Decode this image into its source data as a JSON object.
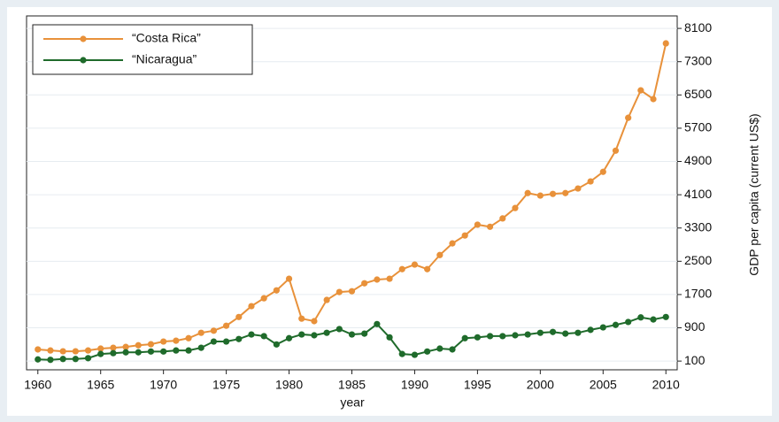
{
  "chart_data": {
    "type": "line",
    "x": [
      1960,
      1961,
      1962,
      1963,
      1964,
      1965,
      1966,
      1967,
      1968,
      1969,
      1970,
      1971,
      1972,
      1973,
      1974,
      1975,
      1976,
      1977,
      1978,
      1979,
      1980,
      1981,
      1982,
      1983,
      1984,
      1985,
      1986,
      1987,
      1988,
      1989,
      1990,
      1991,
      1992,
      1993,
      1994,
      1995,
      1996,
      1997,
      1998,
      1999,
      2000,
      2001,
      2002,
      2003,
      2004,
      2005,
      2006,
      2007,
      2008,
      2009,
      2010
    ],
    "series": [
      {
        "name": "“Costa Rica”",
        "color": "#e8913a",
        "values": [
          380,
          355,
          335,
          335,
          355,
          400,
          420,
          440,
          480,
          505,
          570,
          590,
          650,
          780,
          830,
          950,
          1160,
          1420,
          1610,
          1800,
          2080,
          1120,
          1060,
          1570,
          1760,
          1780,
          1970,
          2060,
          2080,
          2310,
          2420,
          2310,
          2650,
          2930,
          3120,
          3380,
          3330,
          3530,
          3780,
          4140,
          4080,
          4120,
          4140,
          4250,
          4420,
          4650,
          5160,
          5950,
          6610,
          6400,
          7740
        ]
      },
      {
        "name": "“Nicaragua”",
        "color": "#1f6b2b",
        "values": [
          140,
          130,
          150,
          150,
          170,
          270,
          290,
          310,
          310,
          330,
          330,
          355,
          355,
          420,
          570,
          570,
          630,
          740,
          700,
          500,
          650,
          740,
          720,
          780,
          870,
          740,
          760,
          990,
          670,
          270,
          250,
          330,
          400,
          380,
          650,
          670,
          700,
          700,
          720,
          740,
          780,
          800,
          760,
          780,
          850,
          910,
          970,
          1040,
          1150,
          1100,
          1160
        ]
      }
    ],
    "x_label": "year",
    "y_label": "GDP per capita (current US$)",
    "xlim": [
      1959.1,
      2010.9
    ],
    "xticks": [
      1960,
      1965,
      1970,
      1975,
      1980,
      1985,
      1990,
      1995,
      2000,
      2005,
      2010
    ],
    "ylim": [
      -110,
      8400
    ],
    "yticks": [
      100,
      900,
      1700,
      2500,
      3300,
      4100,
      4900,
      5700,
      6500,
      7300,
      8100
    ],
    "grid": true,
    "legend": "top-left"
  }
}
